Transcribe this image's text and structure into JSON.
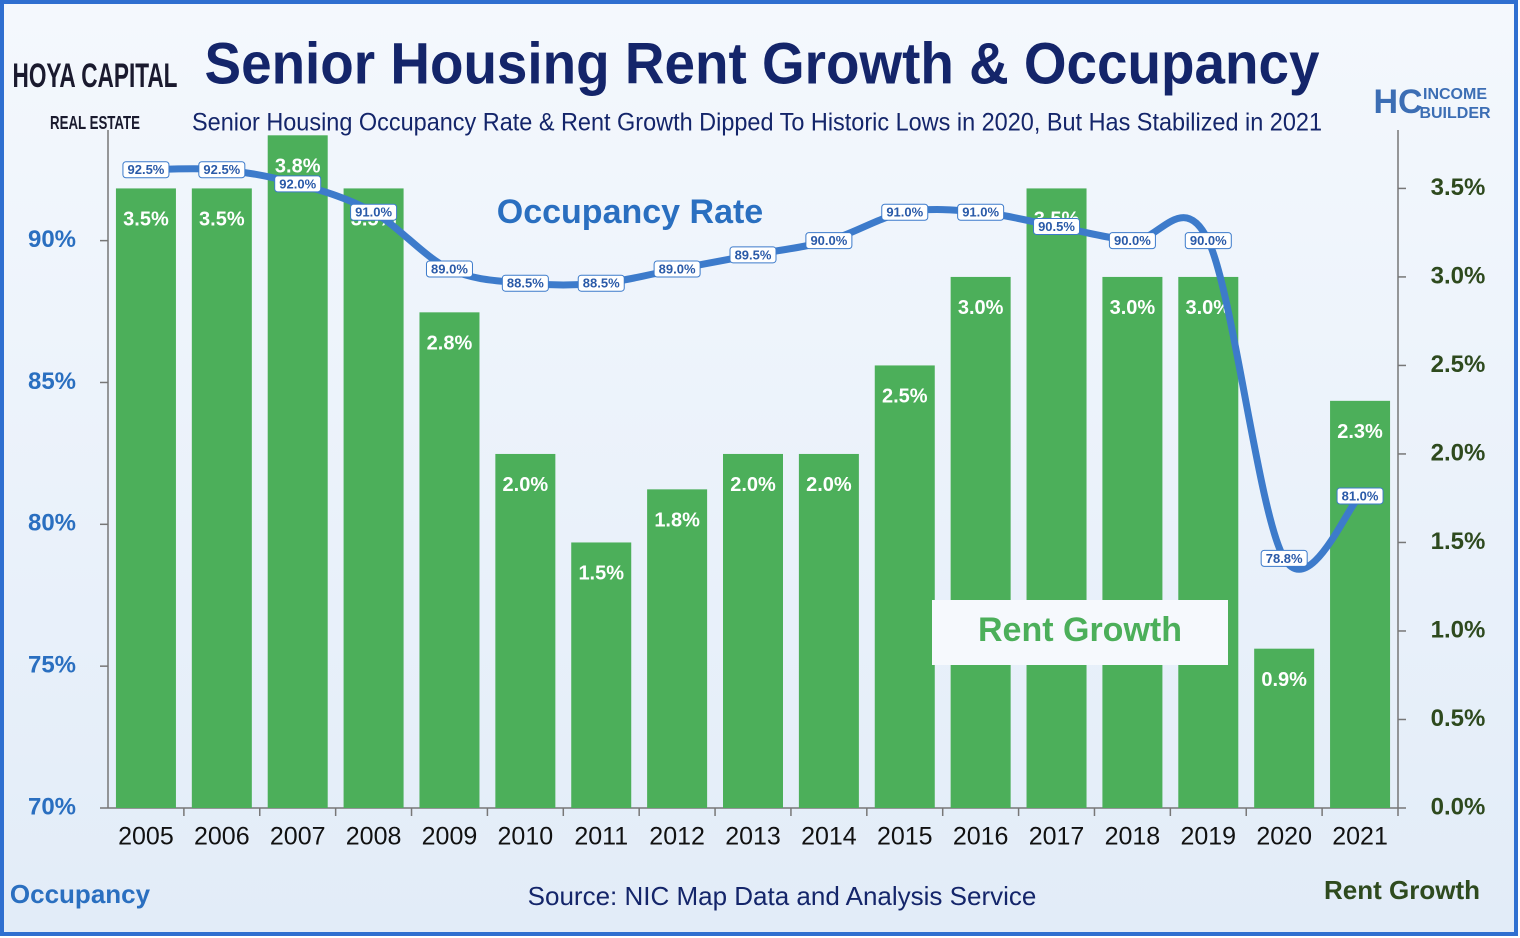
{
  "chart_data": {
    "type": "bar",
    "title": "Senior Housing Rent Growth & Occupancy",
    "subtitle": "Senior Housing Occupancy Rate & Rent Growth Dipped To Historic Lows in 2020, But Has Stabilized in 2021",
    "source": "Source: NIC Map Data and Analysis Service",
    "ylabel": "Occupancy",
    "y2label": "Rent Growth",
    "logo_left": [
      "HOYA CAPITAL",
      "REAL ESTATE"
    ],
    "logo_right": [
      "HC",
      "INCOME",
      "BUILDER"
    ],
    "categories": [
      "2005",
      "2006",
      "2007",
      "2008",
      "2009",
      "2010",
      "2011",
      "2012",
      "2013",
      "2014",
      "2015",
      "2016",
      "2017",
      "2018",
      "2019",
      "2020",
      "2021"
    ],
    "series": [
      {
        "name": "Rent Growth",
        "type": "bar",
        "axis": "y2",
        "color": "#4caf5a",
        "values": [
          3.5,
          3.5,
          3.8,
          3.5,
          2.8,
          2.0,
          1.5,
          1.8,
          2.0,
          2.0,
          2.5,
          3.0,
          3.5,
          3.0,
          3.0,
          0.9,
          2.3
        ],
        "value_labels": [
          "3.5%",
          "3.5%",
          "3.8%",
          "3.5%",
          "2.8%",
          "2.0%",
          "1.5%",
          "1.8%",
          "2.0%",
          "2.0%",
          "2.5%",
          "3.0%",
          "3.5%",
          "3.0%",
          "3.0%",
          "0.9%",
          "2.3%"
        ]
      },
      {
        "name": "Occupancy Rate",
        "type": "line",
        "axis": "y",
        "color": "#3d7bcb",
        "values": [
          92.5,
          92.5,
          92.0,
          91.0,
          89.0,
          88.5,
          88.5,
          89.0,
          89.5,
          90.0,
          91.0,
          91.0,
          90.5,
          90.0,
          90.0,
          78.8,
          81.0
        ],
        "value_labels": [
          "92.5%",
          "92.5%",
          "92.0%",
          "91.0%",
          "89.0%",
          "88.5%",
          "88.5%",
          "89.0%",
          "89.5%",
          "90.0%",
          "91.0%",
          "91.0%",
          "90.5%",
          "90.0%",
          "90.0%",
          "78.8%",
          "81.0%"
        ]
      }
    ],
    "ylim": [
      70,
      93.9
    ],
    "yticks": [
      {
        "value": 70,
        "label": "70%"
      },
      {
        "value": 75,
        "label": "75%"
      },
      {
        "value": 80,
        "label": "80%"
      },
      {
        "value": 85,
        "label": "85%"
      },
      {
        "value": 90,
        "label": "90%"
      }
    ],
    "y2lim": [
      0,
      3.83
    ],
    "y2ticks": [
      {
        "value": 0,
        "label": "0.0%"
      },
      {
        "value": 0.5,
        "label": "0.5%"
      },
      {
        "value": 1,
        "label": "1.0%"
      },
      {
        "value": 1.5,
        "label": "1.5%"
      },
      {
        "value": 2,
        "label": "2.0%"
      },
      {
        "value": 2.5,
        "label": "2.5%"
      },
      {
        "value": 3,
        "label": "3.0%"
      },
      {
        "value": 3.5,
        "label": "3.5%"
      }
    ]
  }
}
